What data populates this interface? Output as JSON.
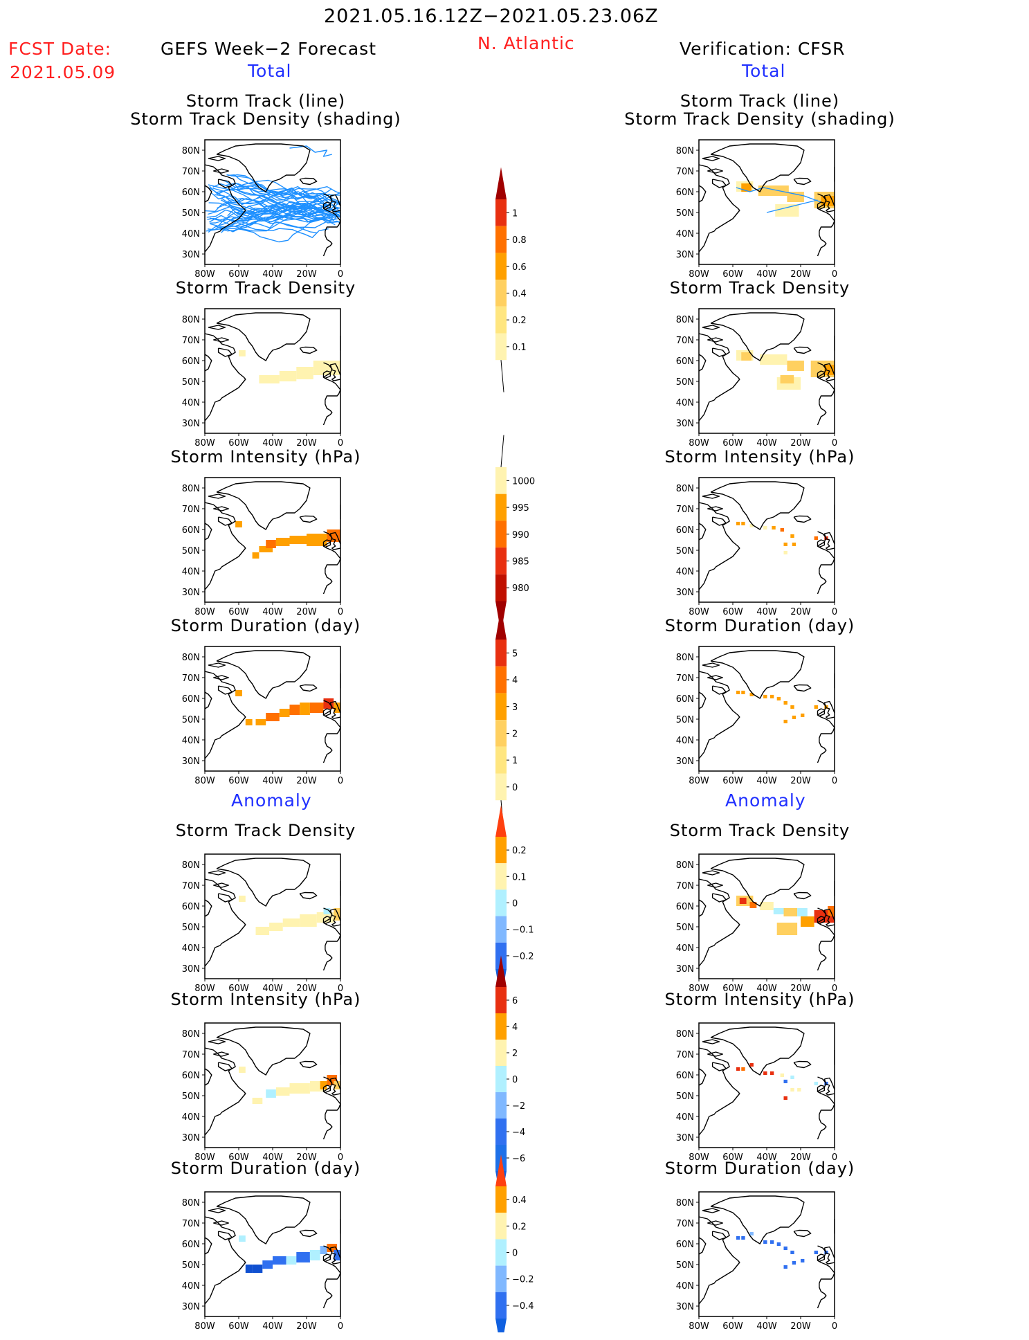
{
  "header": {
    "period": "2021.05.16.12Z−2021.05.23.06Z",
    "region": "N. Atlantic",
    "fcst_label": "FCST Date:",
    "fcst_date": "2021.05.09",
    "left_title": "GEFS Week−2 Forecast",
    "right_title": "Verification: CFSR"
  },
  "sections": {
    "total": "Total",
    "anomaly": "Anomaly"
  },
  "panel_titles": {
    "track_line": "Storm Track (line)",
    "track_shading": "Storm Track Density (shading)",
    "density": "Storm Track Density",
    "intensity": "Storm Intensity (hPa)",
    "duration": "Storm Duration (day)"
  },
  "axes": {
    "x_ticks": [
      "80W",
      "60W",
      "40W",
      "20W",
      "0"
    ],
    "y_ticks": [
      "80N",
      "70N",
      "60N",
      "50N",
      "40N",
      "30N"
    ]
  },
  "colorbars": {
    "density_total": [
      "1",
      "0.8",
      "0.6",
      "0.4",
      "0.2",
      "0.1"
    ],
    "intensity_total": [
      "1000",
      "995",
      "990",
      "985",
      "980"
    ],
    "duration_total": [
      "5",
      "4",
      "3",
      "2",
      "1",
      "0"
    ],
    "density_anom": [
      "0.2",
      "0.1",
      "0",
      "−0.1",
      "−0.2"
    ],
    "intensity_anom": [
      "6",
      "4",
      "2",
      "0",
      "−2",
      "−4",
      "−6"
    ],
    "duration_anom": [
      "0.4",
      "0.2",
      "0",
      "−0.2",
      "−0.4"
    ]
  },
  "colors": {
    "track_line": "#1e90ff",
    "pale_yellow": "#fff3b0",
    "light_orange": "#ffd060",
    "orange": "#ffa000",
    "dark_orange": "#ff7000",
    "red": "#e83010",
    "dark_red": "#a00000",
    "light_blue": "#b0f0ff",
    "mid_blue": "#80b8ff",
    "blue": "#3070f0",
    "dark_blue": "#1050d0"
  }
}
